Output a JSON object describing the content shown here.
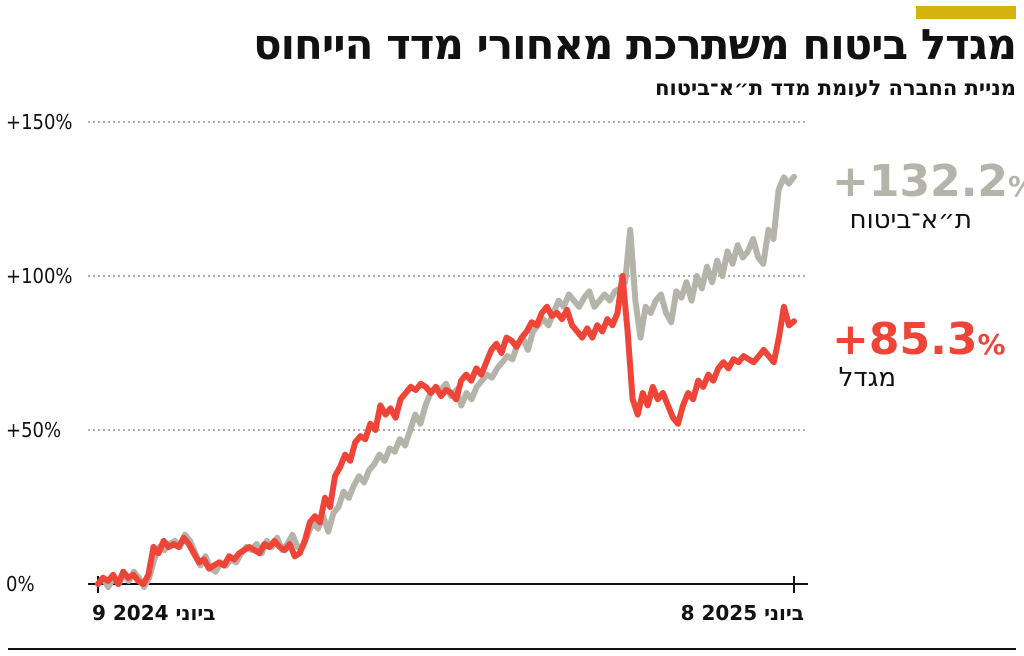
{
  "header": {
    "title": "מגדל ביטוח משתרכת מאחורי מדד הייחוס",
    "subtitle": "מניית החברה לעומת מדד ת״א־ביטוח"
  },
  "colors": {
    "accent": "#d6b20c",
    "index_series": "#b4b4aa",
    "company_series": "#ef4438",
    "grid": "#7f7f7f",
    "axis": "#111111"
  },
  "chart_data": {
    "type": "line",
    "ylim": [
      0,
      150
    ],
    "y_ticks": [
      {
        "value": 0,
        "label": "0%"
      },
      {
        "value": 50,
        "label": "+50%"
      },
      {
        "value": 100,
        "label": "+100%"
      },
      {
        "value": 150,
        "label": "+150%"
      }
    ],
    "x_start_label": "9 ביוני 2024",
    "x_end_label": "8 ביוני 2025",
    "grid": true,
    "series": [
      {
        "name": "ת״א־ביטוח",
        "final_label": "+132.2",
        "pct": "%",
        "values": [
          0,
          2,
          -1,
          2,
          0,
          3,
          1,
          4,
          2,
          -1,
          2,
          8,
          12,
          11,
          13,
          14,
          12,
          16,
          14,
          10,
          6,
          9,
          5,
          4,
          7,
          6,
          8,
          7,
          10,
          12,
          11,
          13,
          10,
          14,
          12,
          15,
          11,
          13,
          16,
          12,
          12,
          16,
          20,
          18,
          22,
          17,
          23,
          25,
          30,
          28,
          32,
          35,
          33,
          37,
          39,
          42,
          40,
          44,
          43,
          47,
          45,
          50,
          55,
          52,
          58,
          62,
          64,
          63,
          65,
          61,
          63,
          58,
          62,
          60,
          64,
          66,
          68,
          67,
          70,
          72,
          74,
          73,
          78,
          80,
          76,
          82,
          84,
          86,
          84,
          88,
          92,
          90,
          94,
          92,
          90,
          93,
          95,
          90,
          92,
          94,
          92,
          95,
          96,
          98,
          115,
          92,
          80,
          90,
          88,
          92,
          94,
          88,
          85,
          95,
          93,
          98,
          92,
          100,
          96,
          103,
          98,
          105,
          100,
          108,
          104,
          110,
          106,
          108,
          112,
          106,
          104,
          115,
          112,
          128,
          132,
          130,
          132.2
        ]
      },
      {
        "name": "מגדל",
        "final_label": "+85.3",
        "pct": "%",
        "values": [
          0,
          2,
          1,
          3,
          0,
          4,
          2,
          3,
          1,
          0,
          3,
          12,
          10,
          14,
          12,
          13,
          12,
          15,
          13,
          10,
          7,
          8,
          5,
          6,
          7,
          6,
          9,
          8,
          10,
          11,
          12,
          11,
          10,
          13,
          12,
          14,
          12,
          11,
          13,
          9,
          10,
          14,
          20,
          22,
          20,
          28,
          25,
          35,
          38,
          42,
          40,
          46,
          48,
          47,
          52,
          50,
          58,
          55,
          57,
          54,
          60,
          62,
          64,
          63,
          65,
          64,
          62,
          64,
          61,
          63,
          62,
          60,
          66,
          68,
          66,
          70,
          68,
          72,
          76,
          78,
          75,
          80,
          79,
          77,
          80,
          82,
          85,
          84,
          88,
          90,
          87,
          88,
          86,
          89,
          84,
          82,
          80,
          83,
          80,
          84,
          82,
          86,
          84,
          88,
          100,
          82,
          60,
          55,
          62,
          58,
          64,
          60,
          62,
          58,
          54,
          52,
          58,
          62,
          60,
          66,
          64,
          68,
          66,
          70,
          72,
          70,
          73,
          72,
          74,
          73,
          72,
          74,
          76,
          74,
          72,
          80,
          90,
          84,
          85.3
        ]
      }
    ]
  }
}
